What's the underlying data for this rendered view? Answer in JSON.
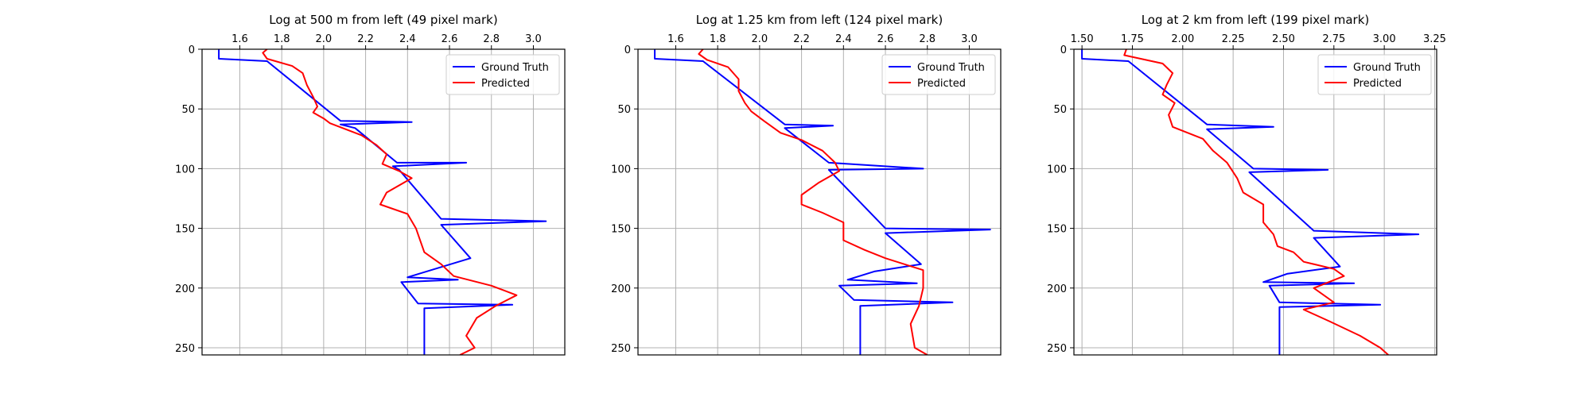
{
  "chart_data": [
    {
      "type": "line",
      "title": "Log at 500 m from left (49 pixel mark)",
      "xticks": [
        1.6,
        1.8,
        2.0,
        2.2,
        2.4,
        2.6,
        2.8,
        3.0
      ],
      "xtick_labels": [
        "1.6",
        "1.8",
        "2.0",
        "2.2",
        "2.4",
        "2.6",
        "2.8",
        "3.0"
      ],
      "yticks": [
        0,
        50,
        100,
        150,
        200,
        250
      ],
      "ytick_labels": [
        "0",
        "50",
        "100",
        "150",
        "200",
        "250"
      ],
      "xlim": [
        1.42,
        3.15
      ],
      "ylim": [
        256,
        0
      ],
      "grid": true,
      "legend": "top-right",
      "series": [
        {
          "name": "Ground Truth",
          "color": "#0000ff",
          "points": [
            [
              1.5,
              0
            ],
            [
              1.5,
              8
            ],
            [
              1.73,
              10
            ],
            [
              2.08,
              60
            ],
            [
              2.42,
              61
            ],
            [
              2.08,
              63
            ],
            [
              2.15,
              66
            ],
            [
              2.35,
              95
            ],
            [
              2.68,
              95
            ],
            [
              2.33,
              98
            ],
            [
              2.36,
              101
            ],
            [
              2.56,
              142
            ],
            [
              3.06,
              144
            ],
            [
              2.56,
              147
            ],
            [
              2.7,
              175
            ],
            [
              2.55,
              183
            ],
            [
              2.4,
              191
            ],
            [
              2.64,
              193
            ],
            [
              2.37,
              195
            ],
            [
              2.45,
              213
            ],
            [
              2.9,
              214
            ],
            [
              2.48,
              217
            ],
            [
              2.48,
              256
            ]
          ]
        },
        {
          "name": "Predicted",
          "color": "#ff0000",
          "points": [
            [
              1.73,
              0
            ],
            [
              1.71,
              3
            ],
            [
              1.73,
              8
            ],
            [
              1.85,
              14
            ],
            [
              1.9,
              20
            ],
            [
              1.92,
              30
            ],
            [
              1.95,
              40
            ],
            [
              1.97,
              48
            ],
            [
              1.95,
              53
            ],
            [
              2.0,
              58
            ],
            [
              2.03,
              62
            ],
            [
              2.18,
              72
            ],
            [
              2.25,
              80
            ],
            [
              2.3,
              88
            ],
            [
              2.28,
              96
            ],
            [
              2.36,
              102
            ],
            [
              2.42,
              108
            ],
            [
              2.3,
              120
            ],
            [
              2.27,
              130
            ],
            [
              2.4,
              138
            ],
            [
              2.44,
              150
            ],
            [
              2.46,
              160
            ],
            [
              2.48,
              170
            ],
            [
              2.56,
              180
            ],
            [
              2.62,
              190
            ],
            [
              2.8,
              198
            ],
            [
              2.92,
              206
            ],
            [
              2.82,
              215
            ],
            [
              2.73,
              225
            ],
            [
              2.68,
              240
            ],
            [
              2.72,
              250
            ],
            [
              2.65,
              256
            ]
          ]
        }
      ]
    },
    {
      "type": "line",
      "title": "Log at 1.25 km from left (124 pixel mark)",
      "xticks": [
        1.6,
        1.8,
        2.0,
        2.2,
        2.4,
        2.6,
        2.8,
        3.0
      ],
      "xtick_labels": [
        "1.6",
        "1.8",
        "2.0",
        "2.2",
        "2.4",
        "2.6",
        "2.8",
        "3.0"
      ],
      "yticks": [
        0,
        50,
        100,
        150,
        200,
        250
      ],
      "ytick_labels": [
        "0",
        "50",
        "100",
        "150",
        "200",
        "250"
      ],
      "xlim": [
        1.42,
        3.15
      ],
      "ylim": [
        256,
        0
      ],
      "grid": true,
      "legend": "top-right",
      "series": [
        {
          "name": "Ground Truth",
          "color": "#0000ff",
          "points": [
            [
              1.5,
              0
            ],
            [
              1.5,
              8
            ],
            [
              1.73,
              10
            ],
            [
              2.12,
              63
            ],
            [
              2.35,
              64
            ],
            [
              2.12,
              66
            ],
            [
              2.33,
              95
            ],
            [
              2.78,
              100
            ],
            [
              2.33,
              101
            ],
            [
              2.6,
              150
            ],
            [
              3.1,
              151
            ],
            [
              2.6,
              154
            ],
            [
              2.77,
              180
            ],
            [
              2.55,
              186
            ],
            [
              2.42,
              193
            ],
            [
              2.75,
              196
            ],
            [
              2.38,
              198
            ],
            [
              2.45,
              210
            ],
            [
              2.92,
              212
            ],
            [
              2.48,
              215
            ],
            [
              2.48,
              256
            ]
          ]
        },
        {
          "name": "Predicted",
          "color": "#ff0000",
          "points": [
            [
              1.73,
              0
            ],
            [
              1.71,
              4
            ],
            [
              1.75,
              9
            ],
            [
              1.85,
              15
            ],
            [
              1.9,
              25
            ],
            [
              1.9,
              35
            ],
            [
              1.93,
              45
            ],
            [
              1.96,
              52
            ],
            [
              2.02,
              60
            ],
            [
              2.1,
              70
            ],
            [
              2.2,
              76
            ],
            [
              2.3,
              85
            ],
            [
              2.36,
              95
            ],
            [
              2.38,
              102
            ],
            [
              2.28,
              112
            ],
            [
              2.2,
              122
            ],
            [
              2.2,
              130
            ],
            [
              2.3,
              137
            ],
            [
              2.4,
              145
            ],
            [
              2.4,
              160
            ],
            [
              2.5,
              168
            ],
            [
              2.6,
              175
            ],
            [
              2.78,
              185
            ],
            [
              2.78,
              200
            ],
            [
              2.76,
              215
            ],
            [
              2.72,
              230
            ],
            [
              2.74,
              250
            ],
            [
              2.8,
              256
            ]
          ]
        }
      ]
    },
    {
      "type": "line",
      "title": "Log at 2 km from left (199 pixel mark)",
      "xticks": [
        1.5,
        1.75,
        2.0,
        2.25,
        2.5,
        2.75,
        3.0,
        3.25
      ],
      "xtick_labels": [
        "1.50",
        "1.75",
        "2.00",
        "2.25",
        "2.50",
        "2.75",
        "3.00",
        "3.25"
      ],
      "yticks": [
        0,
        50,
        100,
        150,
        200,
        250
      ],
      "ytick_labels": [
        "0",
        "50",
        "100",
        "150",
        "200",
        "250"
      ],
      "xlim": [
        1.46,
        3.26
      ],
      "ylim": [
        256,
        0
      ],
      "grid": true,
      "legend": "top-right",
      "series": [
        {
          "name": "Ground Truth",
          "color": "#0000ff",
          "points": [
            [
              1.5,
              0
            ],
            [
              1.5,
              8
            ],
            [
              1.73,
              10
            ],
            [
              2.12,
              63
            ],
            [
              2.45,
              65
            ],
            [
              2.12,
              67
            ],
            [
              2.35,
              100
            ],
            [
              2.72,
              101
            ],
            [
              2.33,
              103
            ],
            [
              2.65,
              152
            ],
            [
              3.17,
              155
            ],
            [
              2.65,
              158
            ],
            [
              2.78,
              182
            ],
            [
              2.52,
              188
            ],
            [
              2.4,
              195
            ],
            [
              2.85,
              196
            ],
            [
              2.43,
              198
            ],
            [
              2.48,
              212
            ],
            [
              2.98,
              214
            ],
            [
              2.48,
              216
            ],
            [
              2.48,
              256
            ]
          ]
        },
        {
          "name": "Predicted",
          "color": "#ff0000",
          "points": [
            [
              1.72,
              0
            ],
            [
              1.71,
              5
            ],
            [
              1.9,
              12
            ],
            [
              1.95,
              20
            ],
            [
              1.92,
              30
            ],
            [
              1.9,
              38
            ],
            [
              1.96,
              45
            ],
            [
              1.93,
              55
            ],
            [
              1.95,
              65
            ],
            [
              2.1,
              75
            ],
            [
              2.15,
              85
            ],
            [
              2.22,
              95
            ],
            [
              2.27,
              108
            ],
            [
              2.3,
              120
            ],
            [
              2.4,
              130
            ],
            [
              2.4,
              145
            ],
            [
              2.45,
              155
            ],
            [
              2.47,
              165
            ],
            [
              2.55,
              170
            ],
            [
              2.6,
              178
            ],
            [
              2.75,
              184
            ],
            [
              2.8,
              190
            ],
            [
              2.65,
              200
            ],
            [
              2.75,
              212
            ],
            [
              2.6,
              218
            ],
            [
              2.73,
              228
            ],
            [
              2.88,
              240
            ],
            [
              2.98,
              250
            ],
            [
              3.02,
              256
            ]
          ]
        }
      ]
    }
  ]
}
